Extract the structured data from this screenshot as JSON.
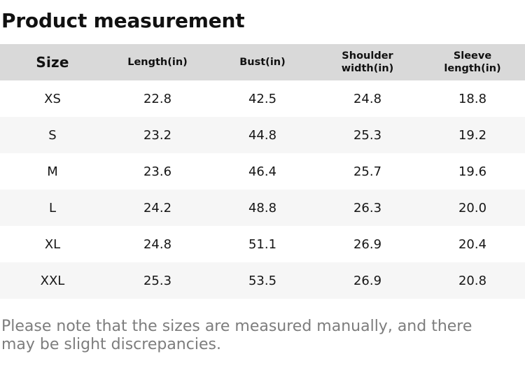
{
  "page_title": "Product measurement",
  "size_table": {
    "columns": [
      "Size",
      "Length(in)",
      "Bust(in)",
      "Shoulder width(in)",
      "Sleeve length(in)"
    ],
    "rows": [
      [
        "XS",
        "22.8",
        "42.5",
        "24.8",
        "18.8"
      ],
      [
        "S",
        "23.2",
        "44.8",
        "25.3",
        "19.2"
      ],
      [
        "M",
        "23.6",
        "46.4",
        "25.7",
        "19.6"
      ],
      [
        "L",
        "24.2",
        "48.8",
        "26.3",
        "20.0"
      ],
      [
        "XL",
        "24.8",
        "51.1",
        "26.9",
        "20.4"
      ],
      [
        "XXL",
        "25.3",
        "53.5",
        "26.9",
        "20.8"
      ]
    ]
  },
  "note": {
    "line1": "Please note that the sizes are measured manually, and there",
    "line2": "may be slight discrepancies."
  },
  "colors": {
    "header_bg": "#d9d9d9",
    "alt_row_bg": "#f6f6f6",
    "body_text": "#161616",
    "note_text": "#7d7d7d"
  }
}
